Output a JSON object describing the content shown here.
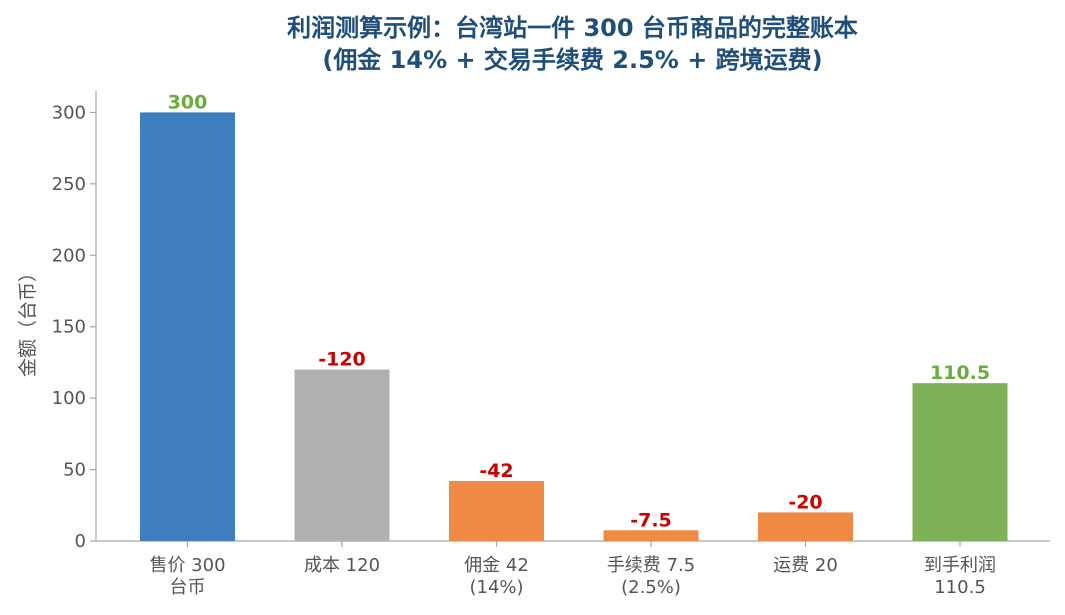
{
  "chart_data": {
    "type": "bar",
    "title_lines": [
      "利润测算示例：台湾站一件 300 台币商品的完整账本",
      "(佣金 14% + 交易手续费 2.5% + 跨境运费)"
    ],
    "xlabel": "",
    "ylabel": "金额（台币）",
    "ylim": [
      0,
      315
    ],
    "yticks": [
      0,
      50,
      100,
      150,
      200,
      250,
      300
    ],
    "grid": false,
    "legend": "none",
    "categories": [
      [
        "售价 300",
        "台币"
      ],
      [
        "成本 120"
      ],
      [
        "佣金 42",
        "(14%)"
      ],
      [
        "手续费 7.5",
        "(2.5%)"
      ],
      [
        "运费 20"
      ],
      [
        "到手利润",
        "110.5"
      ]
    ],
    "values": [
      300,
      120,
      42,
      7.5,
      20,
      110.5
    ],
    "data_labels": [
      "300",
      "-120",
      "-42",
      "-7.5",
      "-20",
      "110.5"
    ],
    "bar_colors": [
      "#3f7fbf",
      "#b0b0b0",
      "#ef8a44",
      "#ef8a44",
      "#ef8a44",
      "#7db356"
    ],
    "label_colors": [
      "#6aad3e",
      "#cc0000",
      "#cc0000",
      "#cc0000",
      "#cc0000",
      "#6aad3e"
    ],
    "title_color": "#1f4e79",
    "axis_color": "#a6a6a6",
    "tick_text_color": "#555555"
  }
}
